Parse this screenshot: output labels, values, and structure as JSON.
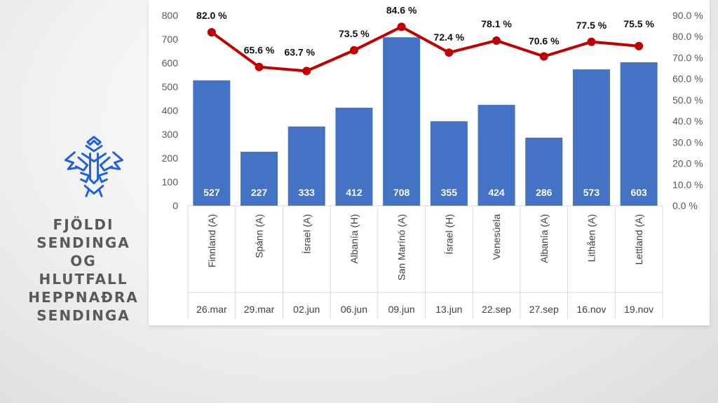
{
  "side_title": [
    "FJÖLDI",
    "SENDINGA",
    "OG",
    "HLUTFALL",
    "HEPPNAÐRA",
    "SENDINGA"
  ],
  "colors": {
    "bar": "#4472c4",
    "line": "#c00000",
    "title": "#5a5a5c",
    "logo": "#1f5fe0"
  },
  "logo": {
    "icon": "ksi-crest-icon"
  },
  "chart_data": {
    "type": "bar",
    "combo": "bar+line",
    "categories": [
      "Finnland (A)",
      "Spánn (A)",
      "Ísrael (A)",
      "Albanía (H)",
      "San Marínó (A)",
      "Ísrael (H)",
      "Venesúela",
      "Albanía (A)",
      "Lithåen (A)",
      "Lettland (A)"
    ],
    "dates": [
      "26.mar",
      "29.mar",
      "02.jun",
      "06.jun",
      "09.jun",
      "13.jun",
      "22.sep",
      "27.sep",
      "16.nov",
      "19.nov"
    ],
    "series": [
      {
        "type": "bar",
        "axis": "left",
        "values": [
          527,
          227,
          333,
          412,
          708,
          355,
          424,
          286,
          573,
          603
        ],
        "labels": [
          "527",
          "227",
          "333",
          "412",
          "708",
          "355",
          "424",
          "286",
          "573",
          "603"
        ]
      },
      {
        "type": "line",
        "axis": "right",
        "values": [
          82.0,
          65.6,
          63.7,
          73.5,
          84.6,
          72.4,
          78.1,
          70.6,
          77.5,
          75.5
        ],
        "labels": [
          "82.0 %",
          "65.6 %",
          "63.7 %",
          "73.5 %",
          "84.6 %",
          "72.4 %",
          "78.1 %",
          "70.6 %",
          "77.5 %",
          "75.5 %"
        ]
      }
    ],
    "y_left": {
      "lim": [
        0,
        800
      ],
      "ticks": [
        "0",
        "100",
        "200",
        "300",
        "400",
        "500",
        "600",
        "700",
        "800"
      ]
    },
    "y_right": {
      "lim": [
        0,
        90
      ],
      "ticks": [
        "0.0 %",
        "10.0 %",
        "20.0 %",
        "30.0 %",
        "40.0 %",
        "50.0 %",
        "60.0 %",
        "70.0 %",
        "80.0 %",
        "90.0 %"
      ]
    },
    "grid": false,
    "legend": "none"
  }
}
